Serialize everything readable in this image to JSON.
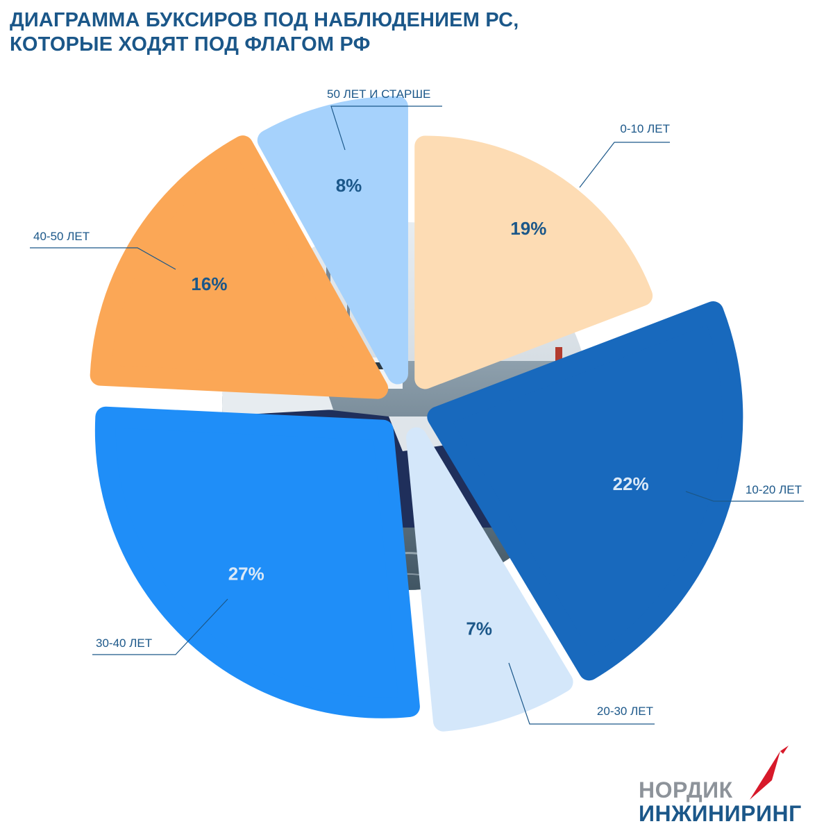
{
  "title": {
    "line1": "ДИАГРАММА БУКСИРОВ ПОД НАБЛЮДЕНИЕМ РС,",
    "line2": "КОТОРЫЕ ХОДЯТ ПОД ФЛАГОМ РФ"
  },
  "chart_data": {
    "type": "pie",
    "title": "ДИАГРАММА БУКСИРОВ ПОД НАБЛЮДЕНИЕМ РС, КОТОРЫЕ ХОДЯТ ПОД ФЛАГОМ РФ",
    "unit": "%",
    "slices": [
      {
        "label": "0-10 ЛЕТ",
        "value": 19,
        "value_label": "19%",
        "color": "#fddcb4",
        "text_color": "#1b5789"
      },
      {
        "label": "10-20 ЛЕТ",
        "value": 22,
        "value_label": "22%",
        "color": "#1869bd",
        "text_color": "#dbe9f7"
      },
      {
        "label": "20-30 ЛЕТ",
        "value": 7,
        "value_label": "7%",
        "color": "#d4e7fa",
        "text_color": "#1b5789"
      },
      {
        "label": "30-40 ЛЕТ",
        "value": 27,
        "value_label": "27%",
        "color": "#1f8ef8",
        "text_color": "#dbe9f7"
      },
      {
        "label": "40-50 ЛЕТ",
        "value": 16,
        "value_label": "16%",
        "color": "#fba756",
        "text_color": "#1b5789"
      },
      {
        "label": "50 ЛЕТ И СТАРШЕ",
        "value": 8,
        "value_label": "8%",
        "color": "#a6d2fc",
        "text_color": "#1b5789"
      }
    ],
    "legend": "none (callout labels)"
  },
  "logo": {
    "line1": "НОРДИК",
    "line2": "ИНЖИНИРИНГ",
    "accent_color": "#d7192a"
  }
}
